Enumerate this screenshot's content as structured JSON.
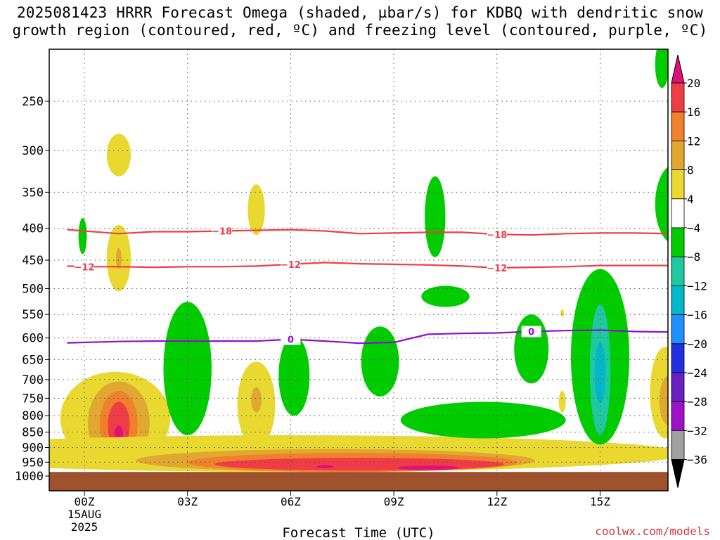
{
  "title_line1": "2025081423 HRRR Forecast Omega (shaded, µbar/s) for KDBQ with dendritic snow",
  "title_line2": "growth region (contoured, red, ºC) and freezing level (contoured, purple, ºC)",
  "credit": "coolwx.com/models",
  "chart_data": {
    "type": "heatmap",
    "title": "2025081423 HRRR Forecast Omega (shaded, µbar/s) for KDBQ with dendritic snow growth region (contoured, red, ºC) and freezing level (contoured, purple, ºC)",
    "xlabel": "Forecast Time (UTC)",
    "ylabel": "",
    "x_range_hours": [
      -0.5,
      17
    ],
    "x_ticks": [
      {
        "hour": 0,
        "label": "00Z",
        "sublabel": "15AUG",
        "sublabel2": "2025"
      },
      {
        "hour": 3,
        "label": "03Z"
      },
      {
        "hour": 6,
        "label": "06Z"
      },
      {
        "hour": 9,
        "label": "09Z"
      },
      {
        "hour": 12,
        "label": "12Z"
      },
      {
        "hour": 15,
        "label": "15Z"
      }
    ],
    "y_axis": {
      "scale": "log",
      "ylim_hpa": [
        1050,
        200
      ],
      "reversed": true
    },
    "y_ticks": [
      250,
      300,
      350,
      400,
      450,
      500,
      550,
      600,
      650,
      700,
      750,
      800,
      850,
      900,
      950,
      1000
    ],
    "grid": true,
    "ground_color": "#a0522d",
    "ground_top_hpa": 985,
    "colorbar": {
      "labels": [
        "20",
        "16",
        "12",
        "8",
        "4",
        "−4",
        "−8",
        "−12",
        "−16",
        "−20",
        "−24",
        "−28",
        "−32",
        "−36"
      ],
      "over_color": "#e0107a",
      "under_color": "#000000",
      "bins": [
        {
          "range": [
            16,
            20
          ],
          "color": "#f03c46"
        },
        {
          "range": [
            12,
            16
          ],
          "color": "#f0802c"
        },
        {
          "range": [
            8,
            12
          ],
          "color": "#e0a830"
        },
        {
          "range": [
            4,
            8
          ],
          "color": "#e8d830"
        },
        {
          "range": [
            -4,
            4
          ],
          "color": "#ffffff"
        },
        {
          "range": [
            -8,
            -4
          ],
          "color": "#00cc00"
        },
        {
          "range": [
            -12,
            -8
          ],
          "color": "#20c8a0"
        },
        {
          "range": [
            -16,
            -12
          ],
          "color": "#00b8c8"
        },
        {
          "range": [
            -20,
            -16
          ],
          "color": "#1e90ff"
        },
        {
          "range": [
            -24,
            -20
          ],
          "color": "#2030e0"
        },
        {
          "range": [
            -28,
            -24
          ],
          "color": "#6a1fc0"
        },
        {
          "range": [
            -32,
            -28
          ],
          "color": "#a010c8"
        },
        {
          "range": [
            -36,
            -32
          ],
          "color": "#a0a0a0"
        }
      ]
    },
    "contours": [
      {
        "name": "-18",
        "color": "#f03c46",
        "points": [
          [
            -0.5,
            402
          ],
          [
            0,
            404
          ],
          [
            1,
            408
          ],
          [
            2,
            405
          ],
          [
            3,
            405
          ],
          [
            4,
            404
          ],
          [
            5,
            403
          ],
          [
            6,
            402
          ],
          [
            7,
            404
          ],
          [
            8,
            408
          ],
          [
            9,
            407
          ],
          [
            10,
            406
          ],
          [
            11,
            406
          ],
          [
            12,
            409
          ],
          [
            13,
            410
          ],
          [
            14,
            408
          ],
          [
            15,
            407
          ],
          [
            16,
            407
          ],
          [
            17,
            408
          ]
        ],
        "labels": [
          4,
          12
        ]
      },
      {
        "name": "-12",
        "color": "#f03c46",
        "points": [
          [
            -0.5,
            460
          ],
          [
            0,
            461
          ],
          [
            1,
            461
          ],
          [
            2,
            462
          ],
          [
            3,
            461
          ],
          [
            4,
            461
          ],
          [
            5,
            460
          ],
          [
            6,
            457
          ],
          [
            7,
            454
          ],
          [
            8,
            456
          ],
          [
            9,
            457
          ],
          [
            10,
            458
          ],
          [
            11,
            460
          ],
          [
            12,
            463
          ],
          [
            13,
            462
          ],
          [
            14,
            461
          ],
          [
            15,
            459
          ],
          [
            16,
            459
          ],
          [
            17,
            459
          ]
        ],
        "labels": [
          0,
          6,
          12
        ]
      },
      {
        "name": "0",
        "color": "#9010c8",
        "points": [
          [
            -0.5,
            611
          ],
          [
            0,
            610
          ],
          [
            1,
            608
          ],
          [
            2,
            607
          ],
          [
            3,
            607
          ],
          [
            4,
            607
          ],
          [
            5,
            607
          ],
          [
            6,
            603
          ],
          [
            7,
            607
          ],
          [
            8,
            612
          ],
          [
            9,
            610
          ],
          [
            10,
            592
          ],
          [
            11,
            590
          ],
          [
            12,
            589
          ],
          [
            13,
            586
          ],
          [
            14,
            584
          ],
          [
            15,
            583
          ],
          [
            16,
            586
          ],
          [
            17,
            587
          ]
        ],
        "labels": [
          6,
          13
        ]
      }
    ]
  }
}
